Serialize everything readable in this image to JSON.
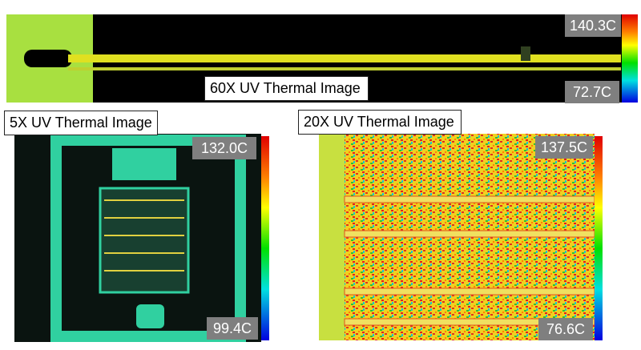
{
  "panels": [
    {
      "title": "60X UV Thermal Image",
      "max_label": "140.3C",
      "min_label": "72.7C"
    },
    {
      "title": "5X UV Thermal Image",
      "max_label": "132.0C",
      "min_label": "99.4C"
    },
    {
      "title": "20X UV Thermal Image",
      "max_label": "137.5C",
      "min_label": "76.6C"
    }
  ]
}
